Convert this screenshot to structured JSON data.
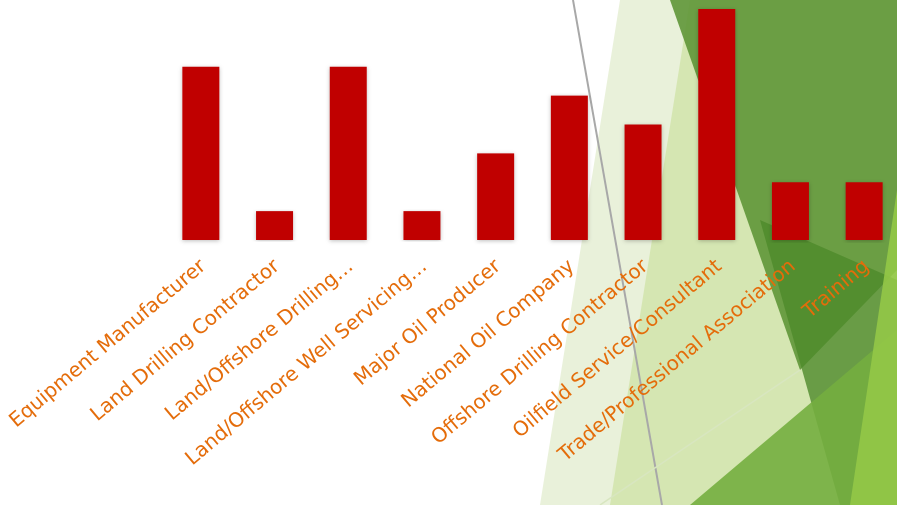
{
  "chart_data": {
    "type": "bar",
    "categories": [
      "Equipment Manufacturer",
      "Land Drilling Contractor",
      "Land/Offshore Drilling…",
      "Land/Offshore Well Servicing…",
      "Major Oil Producer",
      "National Oil Company",
      "Offshore Drilling Contractor",
      "Oilfield Service/Consultant",
      "Trade/Professional Association",
      "Training"
    ],
    "values": [
      6,
      1,
      6,
      1,
      3,
      5,
      4,
      8,
      2,
      2
    ],
    "color": "#c00000",
    "label_color": "#e46c0a"
  }
}
